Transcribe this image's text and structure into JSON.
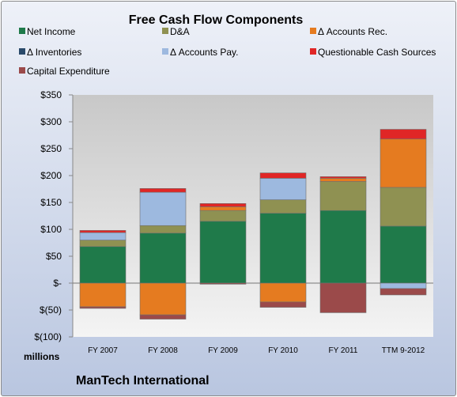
{
  "chart_data": {
    "type": "bar",
    "stacked": true,
    "title": "Free Cash Flow Components",
    "ylabel": "millions",
    "company": "ManTech International",
    "categories": [
      "FY 2007",
      "FY 2008",
      "FY 2009",
      "FY 2010",
      "FY 2011",
      "TTM 9-2012"
    ],
    "ylim": [
      -100,
      350
    ],
    "yticks": [
      350,
      300,
      250,
      200,
      150,
      100,
      50,
      0,
      -50,
      -100
    ],
    "ytick_labels": [
      "$350",
      "$300",
      "$250",
      "$200",
      "$150",
      "$100",
      "$50",
      "$-",
      "$(50)",
      "$(100)"
    ],
    "grid": false,
    "legend_position": "top",
    "series": [
      {
        "name": "Net Income",
        "color": "#1f7a4a",
        "values": [
          68,
          93,
          115,
          130,
          135,
          106
        ]
      },
      {
        "name": "D&A",
        "color": "#8f9152",
        "values": [
          12,
          14,
          20,
          25,
          54,
          72
        ]
      },
      {
        "name": "Δ Accounts Rec.",
        "color": "#e57b20",
        "values": [
          -44,
          -59,
          7,
          -35,
          6,
          90
        ]
      },
      {
        "name": "Δ Inventories",
        "color": "#2a4a6a",
        "values": [
          0,
          0,
          0,
          0,
          0,
          0
        ]
      },
      {
        "name": "Δ Accounts Pay.",
        "color": "#9db9df",
        "values": [
          14,
          62,
          0,
          40,
          0,
          -10
        ]
      },
      {
        "name": "Questionable Cash Sources",
        "color": "#e02626",
        "values": [
          4,
          7,
          6,
          10,
          3,
          18
        ]
      },
      {
        "name": "Capital Expenditure",
        "color": "#9b4a4a",
        "values": [
          -3,
          -8,
          -2,
          -10,
          -55,
          -12
        ]
      }
    ]
  }
}
